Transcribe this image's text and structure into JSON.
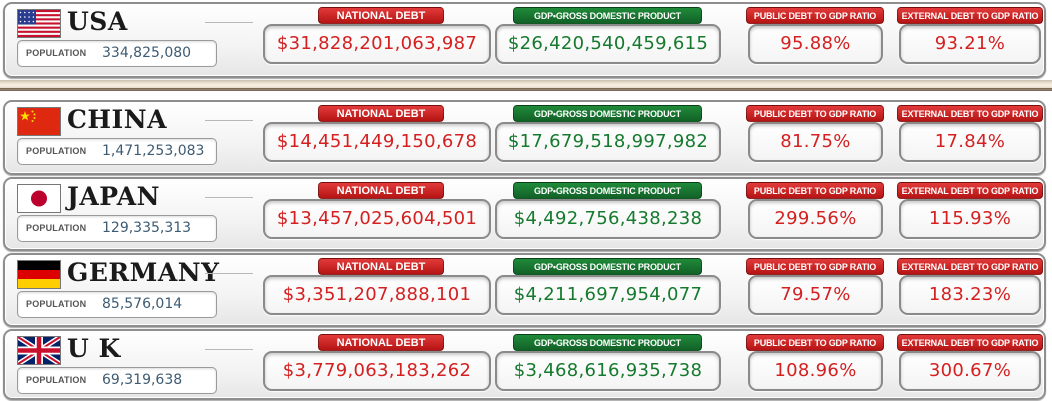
{
  "labels": {
    "national_debt": "NATIONAL DEBT",
    "gdp": "GDP•GROSS DOMESTIC PRODUCT",
    "public_ratio": "PUBLIC DEBT TO GDP RATIO",
    "external_ratio": "EXTERNAL DEBT TO GDP RATIO",
    "population": "POPULATION"
  },
  "colors": {
    "debt_red": "#d42020",
    "gdp_green": "#157a2e",
    "label_red": "#c82020",
    "label_green": "#1a7a33"
  },
  "countries": [
    {
      "name": "USA",
      "flag_icon": "usa-flag-icon",
      "population": "334,825,080",
      "national_debt": "$31,828,201,063,987",
      "gdp": "$26,420,540,459,615",
      "public_ratio": "95.88%",
      "external_ratio": "93.21%"
    },
    {
      "name": "CHINA",
      "flag_icon": "china-flag-icon",
      "population": "1,471,253,083",
      "national_debt": "$14,451,449,150,678",
      "gdp": "$17,679,518,997,982",
      "public_ratio": "81.75%",
      "external_ratio": "17.84%"
    },
    {
      "name": "JAPAN",
      "flag_icon": "japan-flag-icon",
      "population": "129,335,313",
      "national_debt": "$13,457,025,604,501",
      "gdp": "$4,492,756,438,238",
      "public_ratio": "299.56%",
      "external_ratio": "115.93%"
    },
    {
      "name": "GERMANY",
      "flag_icon": "germany-flag-icon",
      "population": "85,576,014",
      "national_debt": "$3,351,207,888,101",
      "gdp": "$4,211,697,954,077",
      "public_ratio": "79.57%",
      "external_ratio": "183.23%"
    },
    {
      "name": "U K",
      "flag_icon": "uk-flag-icon",
      "population": "69,319,638",
      "national_debt": "$3,779,063,183,262",
      "gdp": "$3,468,616,935,738",
      "public_ratio": "108.96%",
      "external_ratio": "300.67%"
    }
  ]
}
